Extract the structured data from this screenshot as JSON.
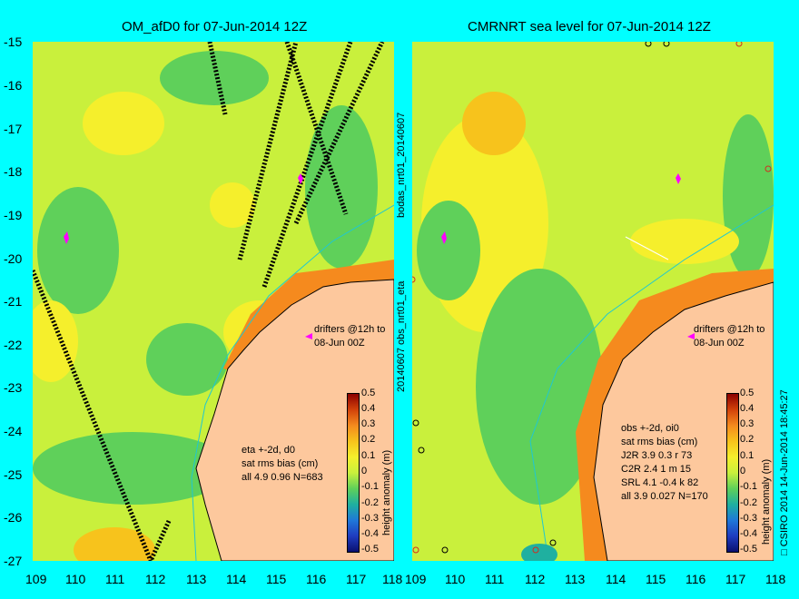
{
  "left_panel": {
    "title": "OM_afD0 for 07-Jun-2014 12Z",
    "drifters_line1": "drifters @12h to",
    "drifters_line2": "08-Jun 00Z",
    "stats": [
      "eta +-2d, d0",
      "sat rms bias (cm)",
      "all 4.9 0.96 N=683"
    ],
    "side_label_top": "bodas_nrt01_20140607",
    "side_label_bottom": "20140607 obs_nrt01_eta"
  },
  "right_panel": {
    "title": "CMRNRT sea level  for 07-Jun-2014 12Z",
    "drifters_line1": "drifters @12h to",
    "drifters_line2": "08-Jun 00Z",
    "stats": [
      "obs +-2d, oi0",
      "sat rms bias (cm)",
      "J2R   3.9  0.3  r 73",
      "C2R   2.4  1  m 15",
      "SRL   4.1  -0.4  k 82",
      "all   3.9  0.027  N=170"
    ],
    "copyright": "□ CSIRO 2014  14-Jun-2014 18:45:27"
  },
  "axes": {
    "x_ticks": [
      "109",
      "110",
      "111",
      "112",
      "113",
      "114",
      "115",
      "116",
      "117",
      "118"
    ],
    "y_ticks": [
      "-15",
      "-16",
      "-17",
      "-18",
      "-19",
      "-20",
      "-21",
      "-22",
      "-23",
      "-24",
      "-25",
      "-26",
      "-27"
    ]
  },
  "colorbar": {
    "label": "height anomaly (m)",
    "ticks": [
      "0.5",
      "0.4",
      "0.3",
      "0.2",
      "0.1",
      "0",
      "-0.1",
      "-0.2",
      "-0.3",
      "-0.4",
      "-0.5"
    ],
    "colors": [
      "#8b0000",
      "#d2420a",
      "#f58a1e",
      "#f7c31c",
      "#f5ef2c",
      "#c9f03c",
      "#5fd05a",
      "#1fb0a0",
      "#1f78d8",
      "#1f3cc0",
      "#0a1070"
    ]
  }
}
